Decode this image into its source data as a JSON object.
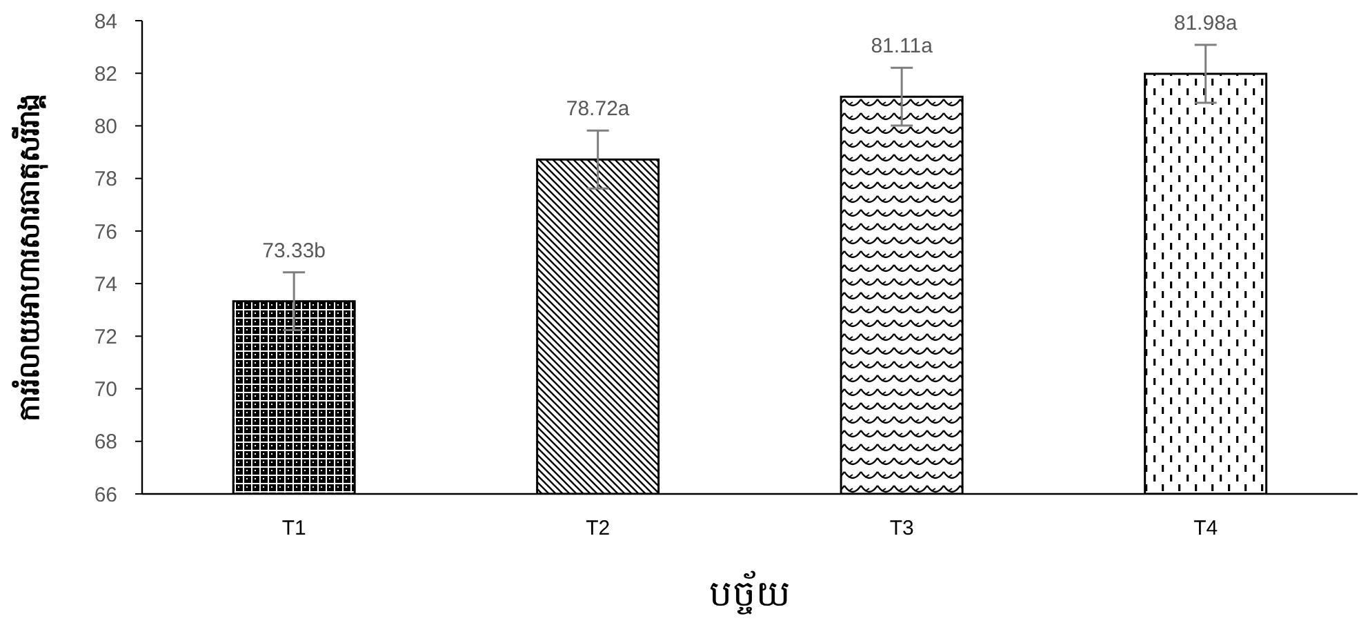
{
  "chart_data": {
    "type": "bar",
    "xlabel": "បច្ច័យ",
    "ylabel": "ការរំលាយអាហារសារធាតុសរីរាង្គ",
    "categories": [
      "T1",
      "T2",
      "T3",
      "T4"
    ],
    "values": [
      73.33,
      78.72,
      81.11,
      81.98
    ],
    "errors": [
      1.1,
      1.1,
      1.1,
      1.1
    ],
    "value_labels": [
      "73.33b",
      "78.72a",
      "81.11a",
      "81.98a"
    ],
    "color": "#000000",
    "ylim": [
      66,
      84
    ],
    "yticks": [
      66,
      68,
      70,
      72,
      74,
      76,
      78,
      80,
      82,
      84
    ]
  }
}
